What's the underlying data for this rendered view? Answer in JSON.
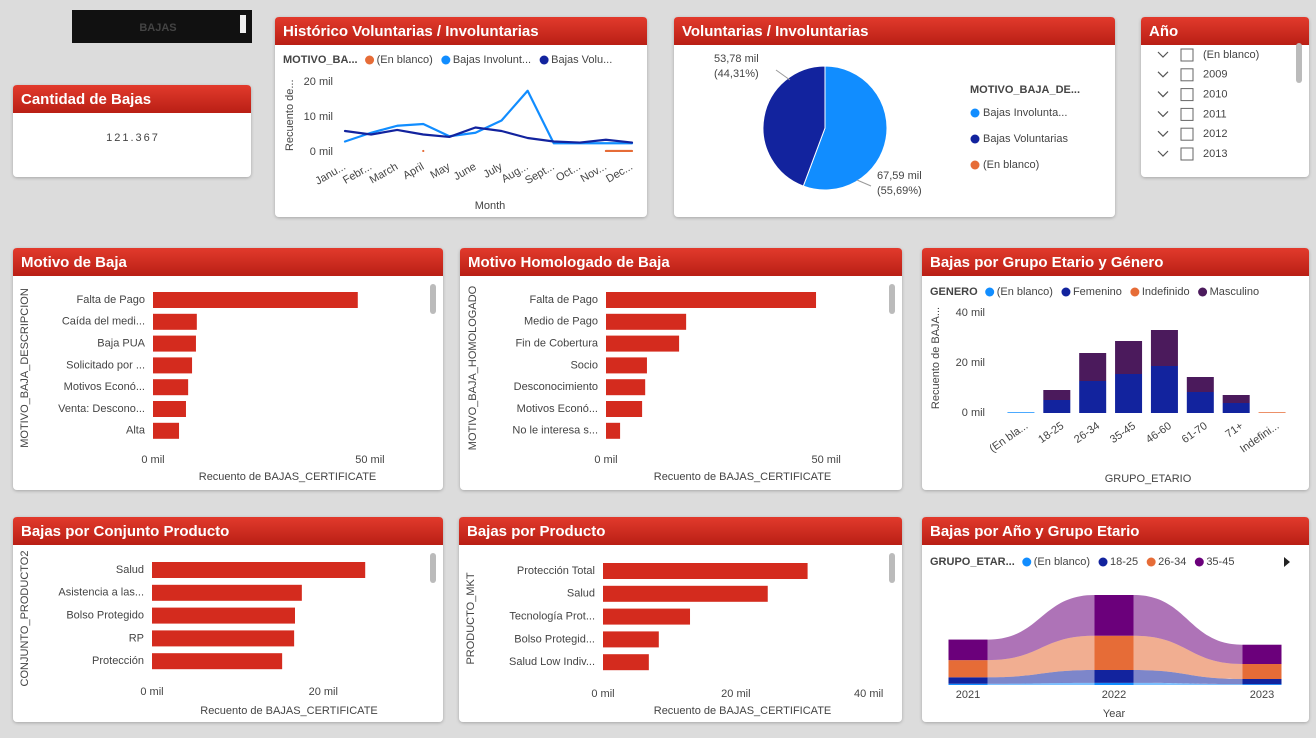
{
  "header": {
    "title": "BAJAS"
  },
  "card": {
    "title": "Cantidad de Bajas",
    "value": "121.367"
  },
  "slicer": {
    "title": "Año",
    "items": [
      "(En blanco)",
      "2009",
      "2010",
      "2011",
      "2012",
      "2013"
    ]
  },
  "chart_data": [
    {
      "type": "line",
      "title": "Histórico Voluntarias / Involuntarias",
      "legend_title": "MOTIVO_BA...",
      "categories": [
        "Janu...",
        "Febr...",
        "March",
        "April",
        "May",
        "June",
        "July",
        "Aug...",
        "Sept...",
        "Oct...",
        "Nov...",
        "Dec..."
      ],
      "series": [
        {
          "name": "(En blanco)",
          "color": "#e66c37",
          "values": [
            null,
            null,
            null,
            300,
            null,
            null,
            null,
            null,
            null,
            null,
            300,
            300
          ]
        },
        {
          "name": "Bajas Involunt...",
          "color": "#118dff",
          "values": [
            3000,
            5500,
            7500,
            8000,
            4500,
            5500,
            9000,
            17500,
            2500,
            2500,
            2500,
            2500
          ]
        },
        {
          "name": "Bajas Volu...",
          "color": "#12239e",
          "values": [
            6000,
            5000,
            6300,
            5000,
            4300,
            7000,
            6000,
            4000,
            3000,
            2700,
            3500,
            2700
          ]
        }
      ],
      "ylabel": "Recuento de...",
      "xlabel": "Month",
      "ylim": [
        0,
        21000
      ],
      "yticks": [
        {
          "value": 0,
          "label": "0 mil"
        },
        {
          "value": 10000,
          "label": "10 mil"
        },
        {
          "value": 20000,
          "label": "20 mil"
        }
      ]
    },
    {
      "type": "pie",
      "title": "Voluntarias / Involuntarias",
      "legend_title": "MOTIVO_BAJA_DE...",
      "categories": [
        "Bajas Involunta...",
        "Bajas Voluntarias",
        "(En blanco)"
      ],
      "values": [
        67590,
        53780,
        0
      ],
      "colors": [
        "#118dff",
        "#12239e",
        "#e66c37"
      ],
      "value_labels": [
        "67,59 mil",
        "53,78 mil",
        null
      ],
      "percent_labels": [
        "(55,69%)",
        "(44,31%)",
        null
      ]
    },
    {
      "type": "hbar",
      "title": "Motivo de Baja",
      "color": "#d42b1e",
      "categories": [
        "Falta de Pago",
        "Caída del medi...",
        "Baja PUA",
        "Solicitado por ...",
        "Motivos Econó...",
        "Venta: Descono...",
        "Alta"
      ],
      "values": [
        47200,
        10100,
        9900,
        9000,
        8100,
        7600,
        6000
      ],
      "xlabel": "Recuento de BAJAS_CERTIFICATE",
      "ylabel": "MOTIVO_BAJA_DESCRIPCION",
      "xlim": [
        0,
        62000
      ],
      "xticks": [
        {
          "value": 0,
          "label": "0 mil"
        },
        {
          "value": 50000,
          "label": "50 mil"
        }
      ]
    },
    {
      "type": "hbar",
      "title": "Motivo Homologado de Baja",
      "color": "#d42b1e",
      "categories": [
        "Falta de Pago",
        "Medio de Pago",
        "Fin de Cobertura",
        "Socio",
        "Desconocimiento",
        "Motivos Econó...",
        "No le interesa s..."
      ],
      "values": [
        47700,
        18200,
        16600,
        9300,
        8900,
        8200,
        3200
      ],
      "xlabel": "Recuento de BAJAS_CERTIFICATE",
      "ylabel": "MOTIVO_BAJA_HOMOLOGADO",
      "xlim": [
        0,
        62000
      ],
      "xticks": [
        {
          "value": 0,
          "label": "0 mil"
        },
        {
          "value": 50000,
          "label": "50 mil"
        }
      ]
    },
    {
      "type": "stacked_bar",
      "title": "Bajas por Grupo Etario y Género",
      "legend_title": "GENERO",
      "categories": [
        "(En bla...",
        "18-25",
        "26-34",
        "35-45",
        "46-60",
        "61-70",
        "71+",
        "Indefini..."
      ],
      "series": [
        {
          "name": "(En blanco)",
          "color": "#118dff",
          "values": [
            300,
            0,
            0,
            0,
            0,
            0,
            0,
            0
          ]
        },
        {
          "name": "Femenino",
          "color": "#12239e",
          "values": [
            0,
            5200,
            12800,
            15600,
            18800,
            8400,
            4000,
            0
          ]
        },
        {
          "name": "Indefinido",
          "color": "#e66c37",
          "values": [
            0,
            0,
            0,
            0,
            0,
            0,
            0,
            300
          ]
        },
        {
          "name": "Masculino",
          "color": "#4b1a5c",
          "values": [
            0,
            4000,
            11200,
            13200,
            14400,
            6000,
            3200,
            0
          ]
        }
      ],
      "ylabel": "Recuento de BAJA...",
      "xlabel": "GRUPO_ETARIO",
      "ylim": [
        0,
        44000
      ],
      "yticks": [
        {
          "value": 0,
          "label": "0 mil"
        },
        {
          "value": 20000,
          "label": "20 mil"
        },
        {
          "value": 40000,
          "label": "40 mil"
        }
      ]
    },
    {
      "type": "hbar",
      "title": "Bajas por Conjunto Producto",
      "color": "#d42b1e",
      "categories": [
        "Salud",
        "Asistencia a las...",
        "Bolso Protegido",
        "RP",
        "Protección"
      ],
      "values": [
        24900,
        17500,
        16700,
        16600,
        15200
      ],
      "xlabel": "Recuento de BAJAS_CERTIFICATE",
      "ylabel": "CONJUNTO_PRODUCTO2",
      "xlim": [
        0,
        32000
      ],
      "xticks": [
        {
          "value": 0,
          "label": "0 mil"
        },
        {
          "value": 20000,
          "label": "20 mil"
        }
      ]
    },
    {
      "type": "hbar",
      "title": "Bajas por Producto",
      "color": "#d42b1e",
      "categories": [
        "Protección Total",
        "Salud",
        "Tecnología Prot...",
        "Bolso Protegid...",
        "Salud Low Indiv..."
      ],
      "values": [
        30800,
        24800,
        13100,
        8400,
        6900
      ],
      "xlabel": "Recuento de BAJAS_CERTIFICATE",
      "ylabel": "PRODUCTO_MKT",
      "xlim": [
        0,
        42000
      ],
      "xticks": [
        {
          "value": 0,
          "label": "0 mil"
        },
        {
          "value": 20000,
          "label": "20 mil"
        },
        {
          "value": 40000,
          "label": "40 mil"
        }
      ]
    },
    {
      "type": "ribbon",
      "title": "Bajas por Año y Grupo Etario",
      "legend_title": "GRUPO_ETAR...",
      "categories": [
        "2021",
        "2022",
        "2023"
      ],
      "xlabel": "Year",
      "series": [
        {
          "name": "(En blanco)",
          "color": "#118dff",
          "values": [
            300,
            500,
            200
          ]
        },
        {
          "name": "18-25",
          "color": "#12239e",
          "values": [
            1500,
            3000,
            1200
          ]
        },
        {
          "name": "26-34",
          "color": "#e66c37",
          "values": [
            4000,
            8000,
            3500
          ]
        },
        {
          "name": "35-45",
          "color": "#6b007b",
          "values": [
            4800,
            9500,
            4500
          ]
        }
      ]
    }
  ]
}
